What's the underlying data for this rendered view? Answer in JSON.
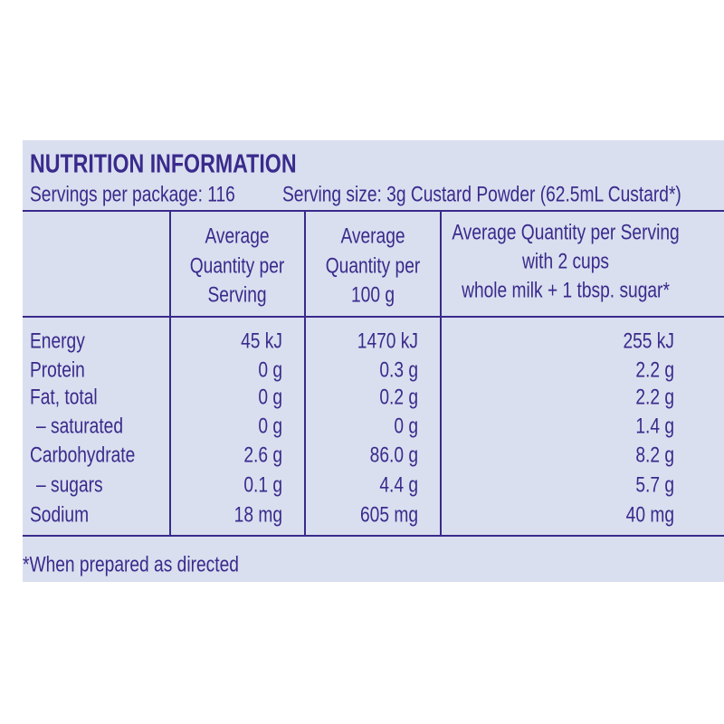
{
  "title": "NUTRITION INFORMATION",
  "servings_per_package": "Servings per package: 116",
  "serving_size": "Serving size: 3g Custard Powder (62.5mL Custard*)",
  "table": {
    "headers": [
      [
        "Average",
        "Quantity per",
        "Serving"
      ],
      [
        "Average",
        "Quantity per",
        "100 g"
      ],
      [
        "Average Quantity per Serving",
        "with 2 cups",
        "whole milk + 1 tbsp. sugar*"
      ]
    ],
    "rows": [
      [
        "Energy",
        "45 kJ",
        "1470 kJ",
        "255 kJ"
      ],
      [
        "Protein",
        "0 g",
        "0.3 g",
        "2.2 g"
      ],
      [
        "Fat, total",
        "0 g",
        "0.2 g",
        "2.2 g"
      ],
      [
        "– saturated",
        "0 g",
        "0 g",
        "1.4 g"
      ],
      [
        "Carbohydrate",
        "2.6 g",
        "86.0 g",
        "8.2 g"
      ],
      [
        "– sugars",
        "0.1 g",
        "4.4 g",
        "5.7 g"
      ],
      [
        "Sodium",
        "18 mg",
        "605 mg",
        "40 mg"
      ]
    ]
  },
  "footnote": "*When prepared as directed"
}
